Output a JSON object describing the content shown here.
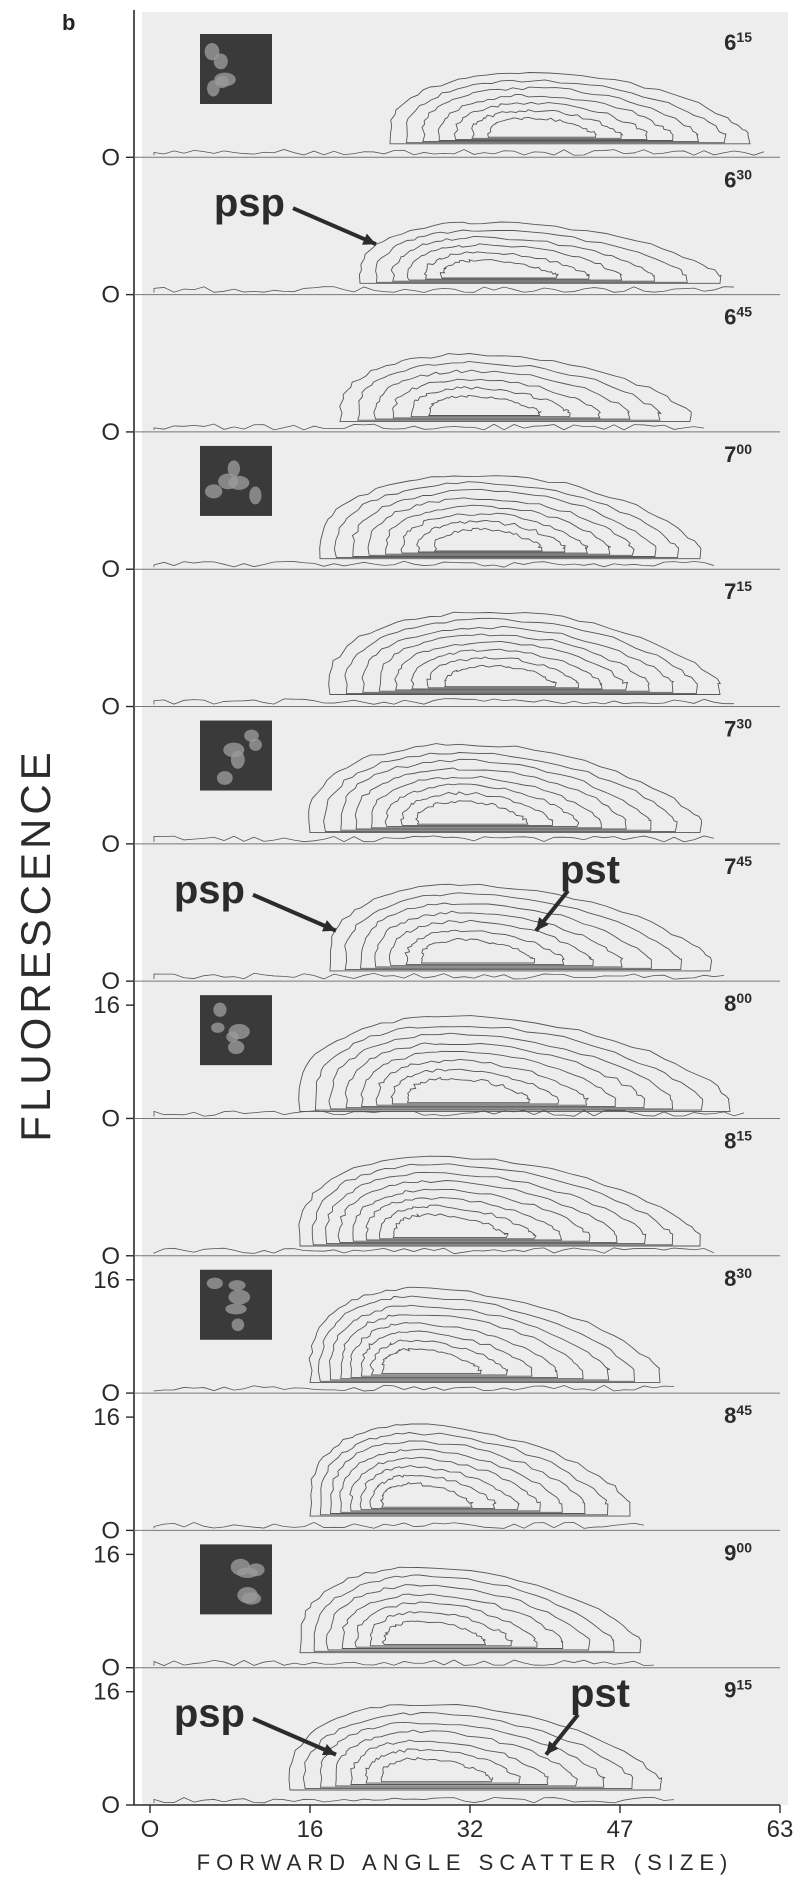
{
  "figure": {
    "panel_letter": "b",
    "ylabel": "FLUORESCENCE",
    "xlabel": "FORWARD  ANGLE  SCATTER  (SIZE)",
    "colors": {
      "ink": "#2b2b2b",
      "panel_bg": "#ededed",
      "contour": "#555555",
      "micrograph": "#3a3a3a"
    }
  },
  "chart_data": {
    "type": "contour",
    "title": "",
    "xlabel": "FORWARD  ANGLE  SCATTER  (SIZE)",
    "ylabel": "FLUORESCENCE",
    "xlim": [
      0,
      63
    ],
    "x_ticks": [
      "O",
      "16",
      "32",
      "47",
      "63"
    ],
    "x_tick_values": [
      0,
      16,
      32,
      47,
      63
    ],
    "grid": false,
    "panels": [
      {
        "time": "6",
        "time_sup": "15",
        "y_ticks": [
          "O"
        ],
        "micrograph": true,
        "peak": {
          "x": 38,
          "y": 0.3
        },
        "spread_left": 14,
        "spread_right": 22,
        "height": 0.6,
        "levels": 7,
        "annotations": []
      },
      {
        "time": "6",
        "time_sup": "30",
        "y_ticks": [
          "O"
        ],
        "micrograph": false,
        "peak": {
          "x": 33,
          "y": 0.25
        },
        "spread_left": 12,
        "spread_right": 24,
        "height": 0.5,
        "levels": 6,
        "annotations": [
          {
            "text": "psp",
            "at_x": 23
          }
        ]
      },
      {
        "time": "6",
        "time_sup": "45",
        "y_ticks": [
          "O"
        ],
        "micrograph": false,
        "peak": {
          "x": 32,
          "y": 0.25
        },
        "spread_left": 13,
        "spread_right": 22,
        "height": 0.55,
        "levels": 6,
        "annotations": []
      },
      {
        "time": "7",
        "time_sup": "00",
        "y_ticks": [
          "O"
        ],
        "micrograph": true,
        "peak": {
          "x": 33,
          "y": 0.28
        },
        "spread_left": 16,
        "spread_right": 22,
        "height": 0.7,
        "levels": 8,
        "annotations": []
      },
      {
        "time": "7",
        "time_sup": "15",
        "y_ticks": [
          "O"
        ],
        "micrograph": false,
        "peak": {
          "x": 34,
          "y": 0.3
        },
        "spread_left": 16,
        "spread_right": 23,
        "height": 0.7,
        "levels": 8,
        "annotations": []
      },
      {
        "time": "7",
        "time_sup": "30",
        "y_ticks": [
          "O"
        ],
        "micrograph": true,
        "peak": {
          "x": 31,
          "y": 0.3
        },
        "spread_left": 15,
        "spread_right": 24,
        "height": 0.75,
        "levels": 8,
        "annotations": []
      },
      {
        "time": "7",
        "time_sup": "45",
        "y_ticks": [
          "O"
        ],
        "micrograph": false,
        "peak": {
          "x": 31,
          "y": 0.28
        },
        "spread_left": 13,
        "spread_right": 25,
        "height": 0.72,
        "levels": 7,
        "annotations": [
          {
            "text": "psp",
            "at_x": 19
          },
          {
            "text": "pst",
            "at_x": 39
          }
        ]
      },
      {
        "time": "8",
        "time_sup": "00",
        "y_ticks": [
          "16",
          "O"
        ],
        "micrograph": true,
        "peak": {
          "x": 30,
          "y": 0.25
        },
        "spread_left": 15,
        "spread_right": 28,
        "height": 0.78,
        "levels": 8,
        "annotations": []
      },
      {
        "time": "8",
        "time_sup": "15",
        "y_ticks": [
          "O"
        ],
        "micrograph": false,
        "peak": {
          "x": 28,
          "y": 0.28
        },
        "spread_left": 13,
        "spread_right": 27,
        "height": 0.75,
        "levels": 8,
        "annotations": []
      },
      {
        "time": "8",
        "time_sup": "30",
        "y_ticks": [
          "16",
          "O"
        ],
        "micrograph": true,
        "peak": {
          "x": 26,
          "y": 0.3
        },
        "spread_left": 10,
        "spread_right": 25,
        "height": 0.8,
        "levels": 8,
        "annotations": []
      },
      {
        "time": "8",
        "time_sup": "45",
        "y_ticks": [
          "16",
          "O"
        ],
        "micrograph": false,
        "peak": {
          "x": 26,
          "y": 0.35
        },
        "spread_left": 10,
        "spread_right": 22,
        "height": 0.8,
        "levels": 8,
        "annotations": []
      },
      {
        "time": "9",
        "time_sup": "00",
        "y_ticks": [
          "16",
          "O"
        ],
        "micrograph": true,
        "peak": {
          "x": 27,
          "y": 0.35
        },
        "spread_left": 12,
        "spread_right": 22,
        "height": 0.75,
        "levels": 7,
        "annotations": []
      },
      {
        "time": "9",
        "time_sup": "15",
        "y_ticks": [
          "16",
          "O"
        ],
        "micrograph": false,
        "peak": {
          "x": 27,
          "y": 0.35
        },
        "spread_left": 13,
        "spread_right": 24,
        "height": 0.75,
        "levels": 7,
        "annotations": [
          {
            "text": "psp",
            "at_x": 19
          },
          {
            "text": "pst",
            "at_x": 40
          }
        ]
      }
    ]
  }
}
